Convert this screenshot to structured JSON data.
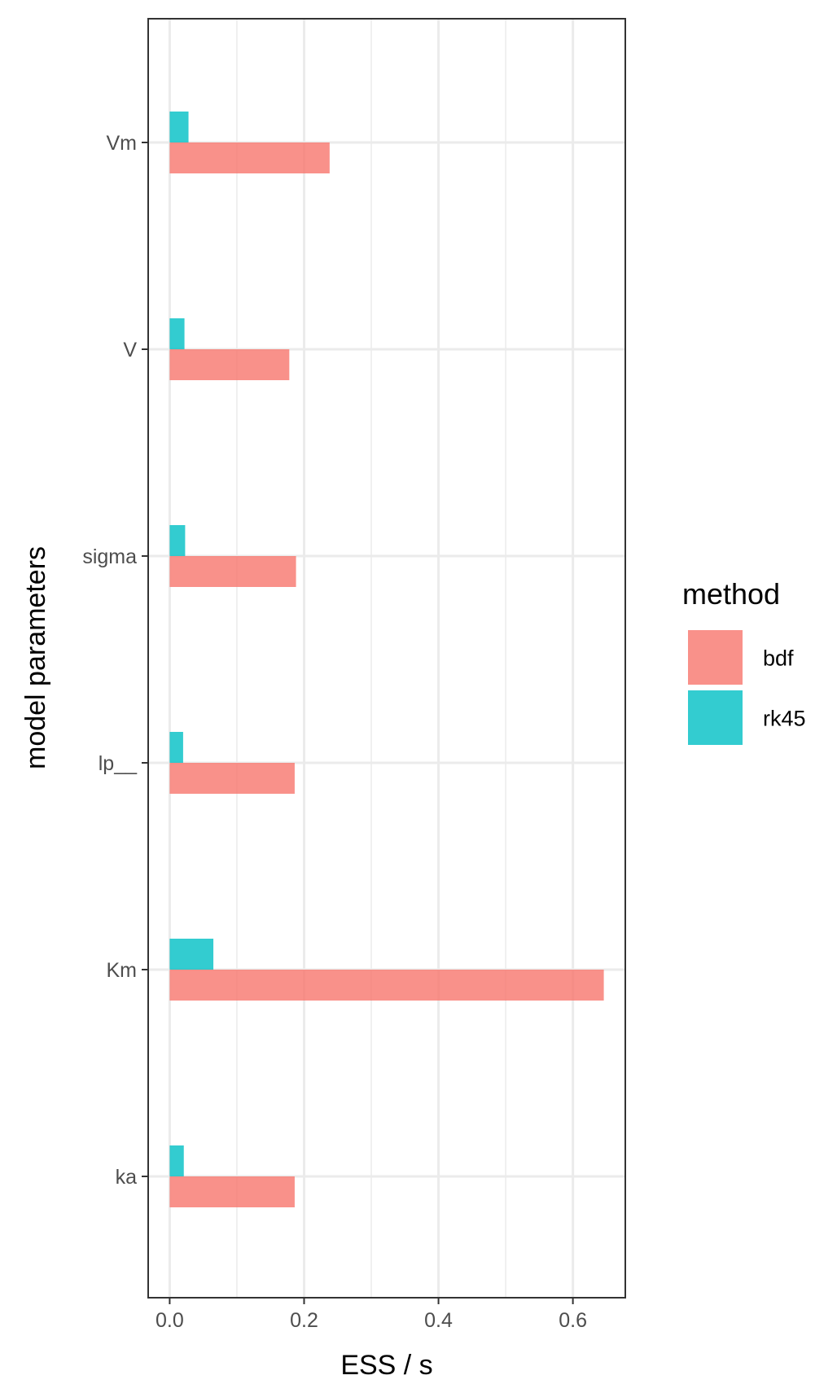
{
  "chart_data": {
    "type": "bar",
    "orientation": "horizontal",
    "categories": [
      "Vm",
      "V",
      "sigma",
      "lp__",
      "Km",
      "ka"
    ],
    "series": [
      {
        "name": "bdf",
        "color": "#F8766D",
        "values": [
          0.238,
          0.178,
          0.188,
          0.186,
          0.646,
          0.186
        ]
      },
      {
        "name": "rk45",
        "color": "#00BFC4",
        "values": [
          0.028,
          0.022,
          0.023,
          0.02,
          0.065,
          0.021
        ]
      }
    ],
    "xlabel": "ESS / s",
    "ylabel": "model parameters",
    "xlim": [
      -0.032,
      0.678
    ],
    "xticks": [
      0.0,
      0.2,
      0.4,
      0.6
    ],
    "xtick_labels": [
      "0.0",
      "0.2",
      "0.4",
      "0.6"
    ],
    "grid": true,
    "legend": {
      "title": "method",
      "position": "right"
    }
  }
}
